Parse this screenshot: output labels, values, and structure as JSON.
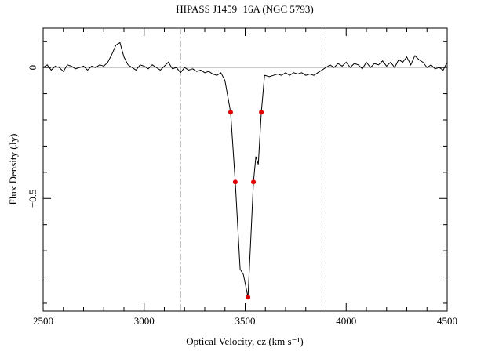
{
  "chart_data": {
    "type": "line",
    "title": "HIPASS J1459−16A (NGC 5793)",
    "xlabel": "Optical Velocity, cz (km s⁻¹)",
    "ylabel": "Flux Density (Jy)",
    "xlim": [
      2500,
      4500
    ],
    "ylim": [
      -0.93,
      0.15
    ],
    "xticks": [
      2500,
      3000,
      3500,
      4000,
      4500
    ],
    "xminorticks": [
      2600,
      2700,
      2800,
      2900,
      3100,
      3200,
      3300,
      3400,
      3600,
      3700,
      3800,
      3900,
      4100,
      4200,
      4300,
      4400
    ],
    "yticks": [
      {
        "value": -0.5,
        "label": "−0.5"
      },
      0
    ],
    "yminorticks": [
      -0.9,
      -0.8,
      -0.7,
      -0.6,
      -0.4,
      -0.3,
      -0.2,
      -0.1,
      0.1
    ],
    "zero_line": true,
    "vlines": [
      3180,
      3900
    ],
    "series": [
      {
        "color": "#000000",
        "style": "line",
        "x": [
          2500,
          2520,
          2540,
          2560,
          2580,
          2600,
          2620,
          2640,
          2660,
          2680,
          2700,
          2720,
          2740,
          2760,
          2780,
          2800,
          2820,
          2840,
          2860,
          2880,
          2900,
          2920,
          2940,
          2960,
          2980,
          3000,
          3020,
          3040,
          3060,
          3080,
          3100,
          3120,
          3140,
          3160,
          3180,
          3200,
          3220,
          3240,
          3260,
          3280,
          3300,
          3320,
          3340,
          3360,
          3380,
          3400,
          3428,
          3451,
          3475,
          3491,
          3514,
          3530,
          3541,
          3553,
          3565,
          3580,
          3596,
          3620,
          3640,
          3660,
          3680,
          3700,
          3720,
          3740,
          3760,
          3780,
          3800,
          3820,
          3840,
          3860,
          3880,
          3900,
          3920,
          3940,
          3960,
          3980,
          4000,
          4020,
          4040,
          4060,
          4080,
          4100,
          4120,
          4140,
          4160,
          4180,
          4200,
          4220,
          4240,
          4260,
          4280,
          4300,
          4320,
          4340,
          4360,
          4380,
          4400,
          4420,
          4440,
          4460,
          4480,
          4500
        ],
        "values": [
          0.0,
          0.01,
          -0.01,
          0.005,
          0.0,
          -0.015,
          0.01,
          0.005,
          -0.005,
          0.0,
          0.005,
          -0.01,
          0.005,
          0.0,
          0.01,
          0.005,
          0.02,
          0.05,
          0.085,
          0.095,
          0.04,
          0.01,
          0.0,
          -0.01,
          0.01,
          0.005,
          -0.005,
          0.01,
          0.0,
          -0.01,
          0.005,
          0.02,
          -0.005,
          0.0,
          -0.02,
          0.0,
          -0.01,
          -0.005,
          -0.015,
          -0.01,
          -0.02,
          -0.015,
          -0.025,
          -0.03,
          -0.02,
          -0.05,
          -0.171,
          -0.437,
          -0.77,
          -0.79,
          -0.877,
          -0.62,
          -0.437,
          -0.34,
          -0.37,
          -0.171,
          -0.03,
          -0.035,
          -0.03,
          -0.025,
          -0.03,
          -0.02,
          -0.03,
          -0.02,
          -0.025,
          -0.02,
          -0.03,
          -0.025,
          -0.03,
          -0.02,
          -0.01,
          0.0,
          0.01,
          0.0,
          0.015,
          0.005,
          0.02,
          0.0,
          0.015,
          0.01,
          -0.005,
          0.02,
          0.0,
          0.015,
          0.01,
          0.025,
          0.005,
          0.02,
          0.0,
          0.03,
          0.02,
          0.04,
          0.01,
          0.045,
          0.03,
          0.02,
          0.0,
          0.01,
          -0.005,
          0.0,
          -0.01,
          0.02
        ]
      },
      {
        "color": "#e00000",
        "style": "points",
        "x": [
          3428,
          3580,
          3451,
          3541,
          3514
        ],
        "values": [
          -0.171,
          -0.171,
          -0.437,
          -0.437,
          -0.877
        ]
      }
    ]
  }
}
